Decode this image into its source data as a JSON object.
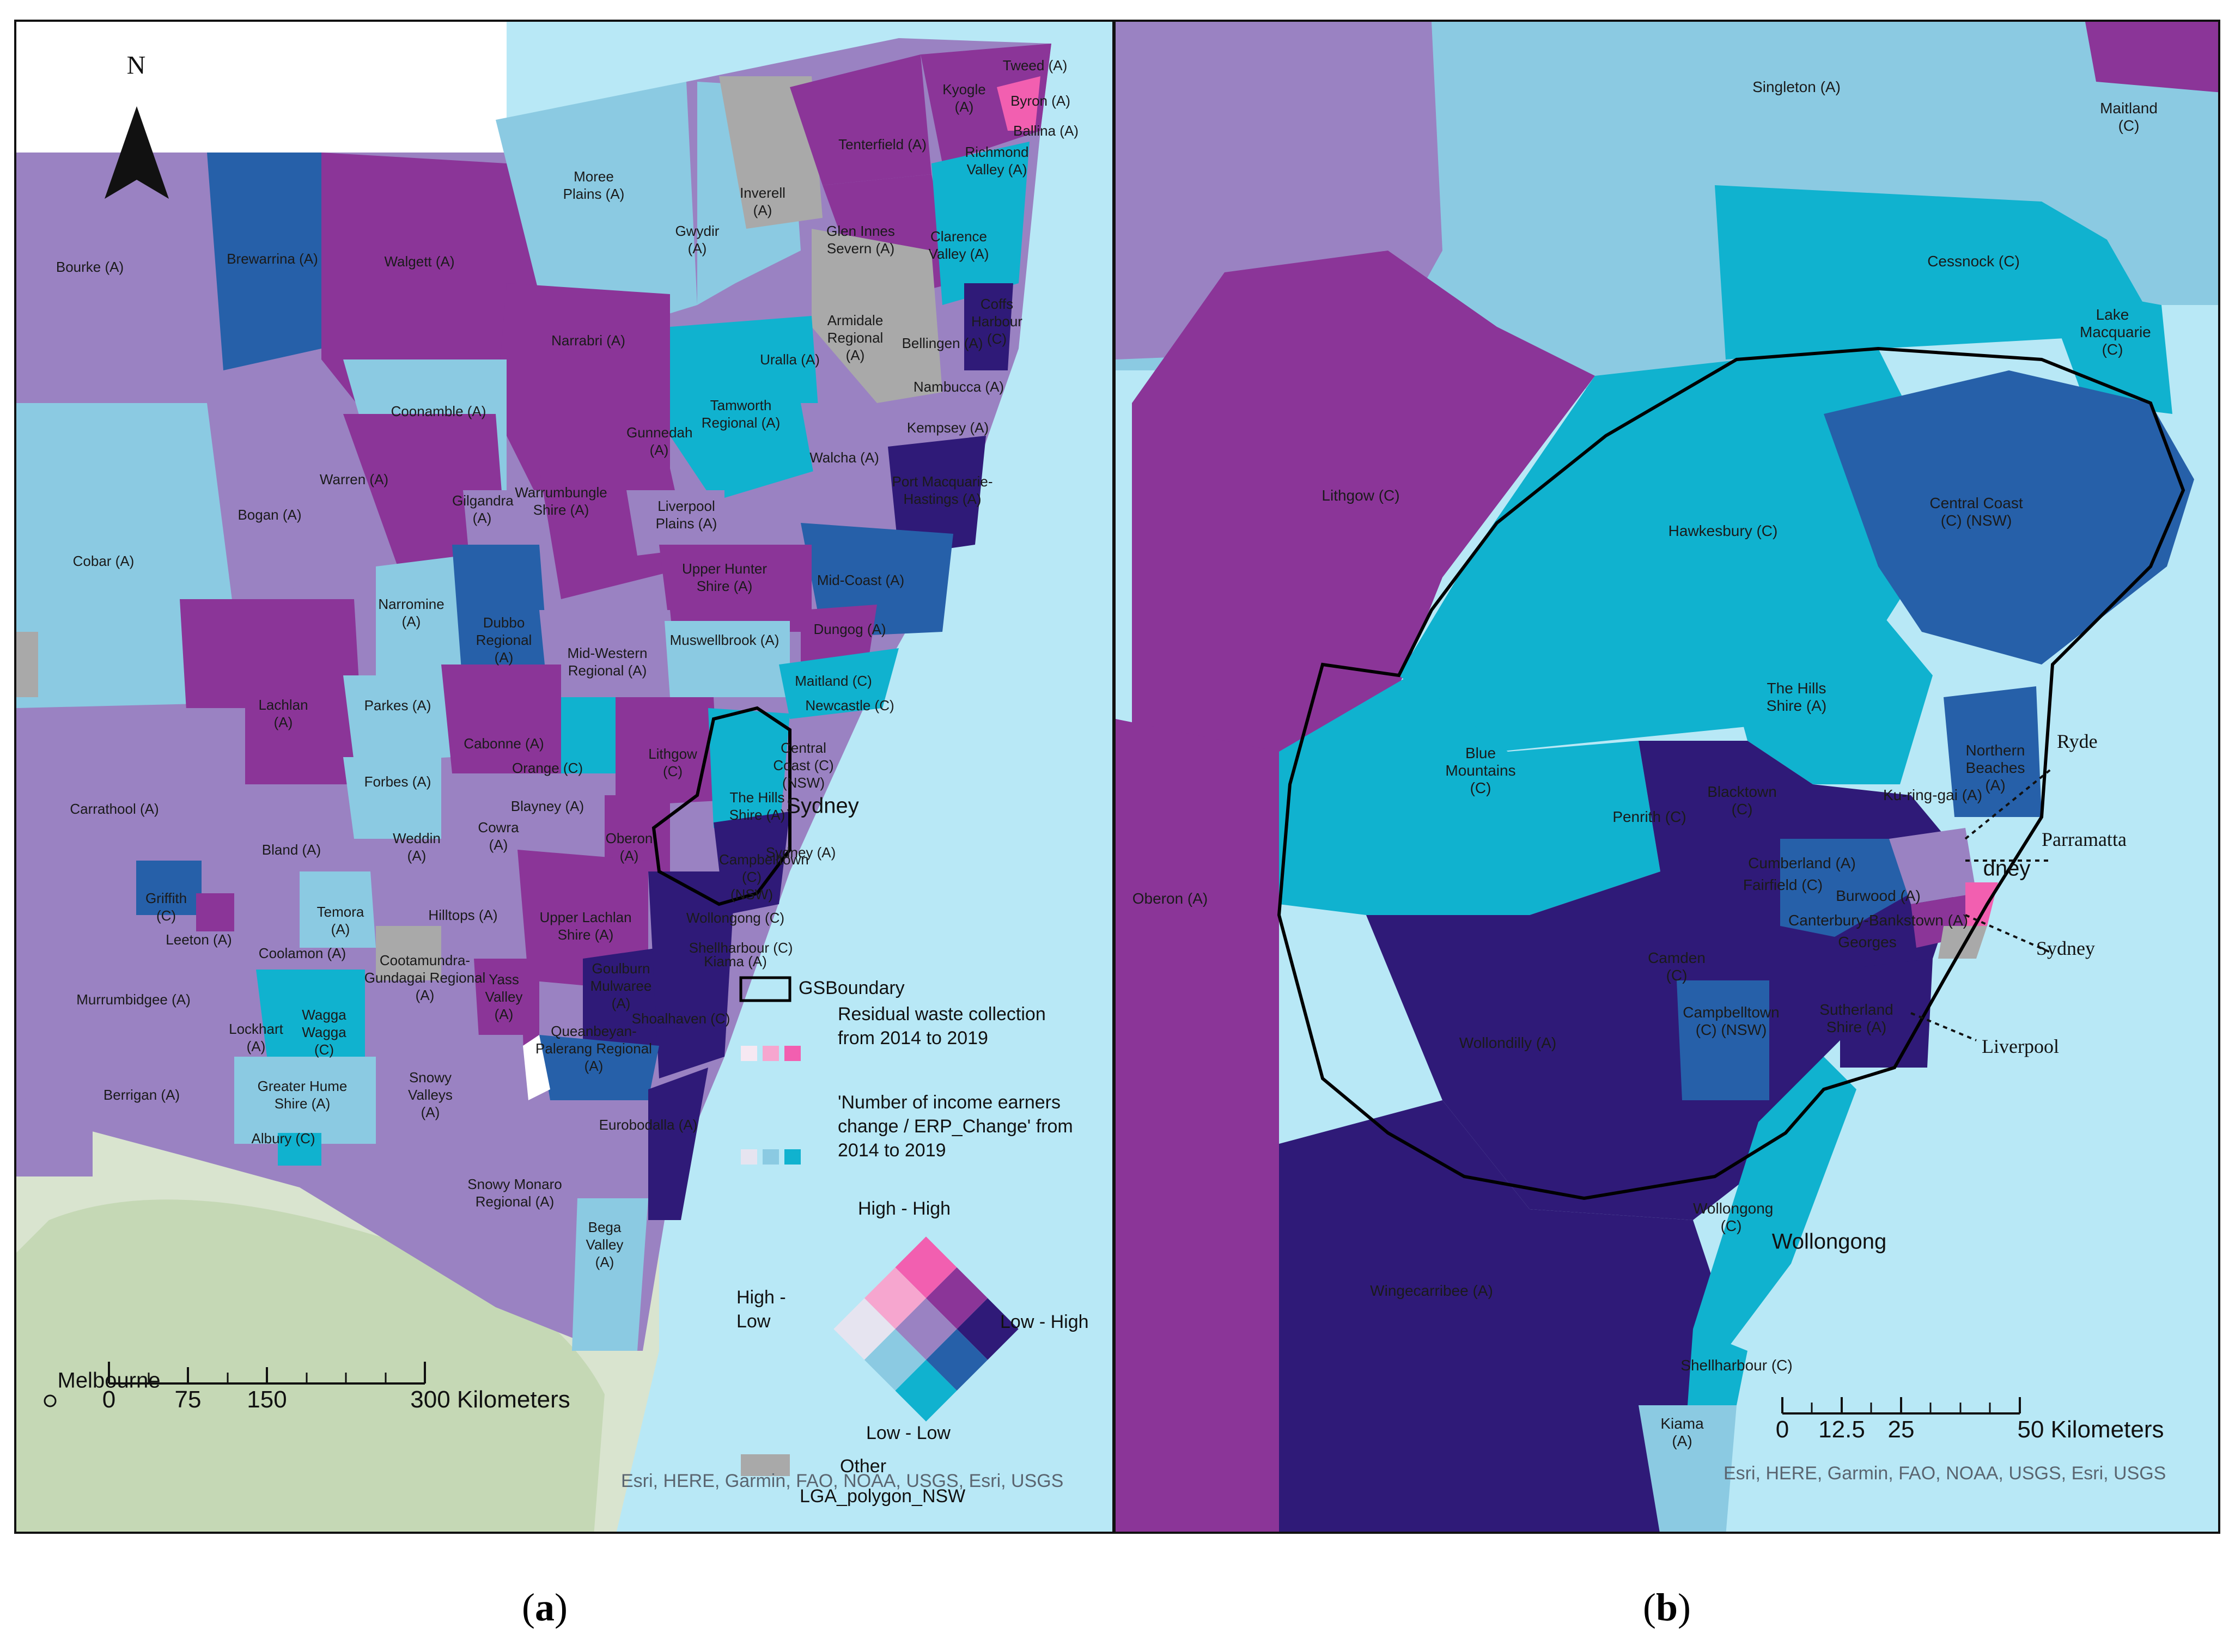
{
  "colors": {
    "dark_navy": "#2f1a78",
    "dark_blue": "#2660a9",
    "teal": "#10b2cf",
    "light_blue": "#8bcae2",
    "purple": "#8b3598",
    "lavender": "#9a82c2",
    "pink": "#f25fb0",
    "light_pink": "#f6a6cf",
    "pale": "#e6e4f0",
    "grey": "#a9a9a9",
    "sea": "#b8e8f6"
  },
  "panel_a": {
    "north_label": "N",
    "city_label": "Sydney",
    "melbourne_label": "Melbourne",
    "scale_ticks": [
      "0",
      "75",
      "150",
      "300 Kilometers"
    ],
    "attribution": "Esri, HERE, Garmin, FAO, NOAA, USGS, Esri, USGS",
    "lga_labels": [
      "Tweed (A)",
      "Byron (A)",
      "Ballina (A)",
      "Kyogle (A)",
      "Tenterfield (A)",
      "Richmond Valley (A)",
      "Moree Plains (A)",
      "Inverell (A)",
      "Gwydir (A)",
      "Glen Innes Severn (A)",
      "Clarence Valley (A)",
      "Bourke (A)",
      "Brewarrina (A)",
      "Walgett (A)",
      "Armidale Regional (A)",
      "Coffs Harbour (C)",
      "Bellingen (A)",
      "Narrabri (A)",
      "Uralla (A)",
      "Nambucca (A)",
      "Coonamble (A)",
      "Tamworth Regional (A)",
      "Gunnedah (A)",
      "Walcha (A)",
      "Kempsey (A)",
      "Warren (A)",
      "Port Macquarie-Hastings (A)",
      "Warrumbungle Shire (A)",
      "Gilgandra (A)",
      "Bogan (A)",
      "Liverpool Plains (A)",
      "Cobar (A)",
      "Upper Hunter Shire (A)",
      "Mid-Coast (A)",
      "Narromine (A)",
      "Dubbo Regional (A)",
      "Mid-Western Regional (A)",
      "Muswellbrook (A)",
      "Dungog (A)",
      "Lachlan (A)",
      "Maitland (C)",
      "Parkes (A)",
      "Newcastle (C)",
      "Cabonne (A)",
      "Lithgow (C)",
      "Central Coast (C) (NSW)",
      "Orange (C)",
      "Forbes (A)",
      "The Hills Shire (A)",
      "Carrathool (A)",
      "Blayney (A)",
      "Weddin (A)",
      "Cowra (A)",
      "Bland (A)",
      "Oberon (A)",
      "Sydney (A)",
      "Campbelltown (C) (NSW)",
      "Griffith (C)",
      "Hilltops (A)",
      "Temora (A)",
      "Upper Lachlan Shire (A)",
      "Wollongong (C)",
      "Leeton (A)",
      "Coolamon (A)",
      "Shellharbour (C)",
      "Kiama (A)",
      "Cootamundra-Gundagai Regional (A)",
      "Murrumbidgee (A)",
      "Yass Valley (A)",
      "Goulburn Mulwaree (A)",
      "Wagga Wagga (C)",
      "Shoalhaven (C)",
      "Lockhart (A)",
      "Queanbeyan-Palerang Regional (A)",
      "Greater Hume Shire (A)",
      "Snowy Valleys (A)",
      "Berrigan (A)",
      "Albury (C)",
      "Eurobodalla (A)",
      "Snowy Monaro Regional (A)",
      "Bega Valley (A)"
    ],
    "legend": {
      "gs_boundary": "GSBoundary",
      "residual": "Residual waste collection from 2014 to 2019",
      "income": "'Number of income earners change / ERP_Change' from 2014 to 2019",
      "high_high": "High - High",
      "high_low": "High - Low",
      "low_high": "Low - High",
      "low_low": "Low - Low",
      "other": "Other",
      "lga_polygon": "LGA_polygon_NSW"
    }
  },
  "panel_b": {
    "city_wollongong": "Wollongong",
    "city_sydney_fragment": "dney",
    "scale_ticks": [
      "0",
      "12.5",
      "25",
      "50 Kilometers"
    ],
    "attribution": "Esri, HERE, Garmin, FAO, NOAA, USGS, Esri, USGS",
    "callouts": [
      "Ryde",
      "Parramatta",
      "Sydney",
      "Liverpool"
    ],
    "lga_labels": [
      "Singleton (A)",
      "Maitland (C)",
      "Cessnock (C)",
      "Lake Macquarie (C)",
      "Lithgow (C)",
      "Hawkesbury (C)",
      "Central Coast (C) (NSW)",
      "The Hills Shire (A)",
      "Blue Mountains (C)",
      "Northern Beaches (A)",
      "Ku-ring-gai (A)",
      "Blacktown (C)",
      "Penrith (C)",
      "Oberon (A)",
      "Cumberland (A)",
      "Fairfield (C)",
      "Burwood (A)",
      "Canterbury-Bankstown (A)",
      "Georges",
      "Camden (C)",
      "Sutherland Shire (A)",
      "Wollondilly (A)",
      "Campbelltown (C) (NSW)",
      "Wollongong (C)",
      "Wingecarribee (A)",
      "Shellharbour (C)",
      "Kiama (A)"
    ]
  },
  "captions": {
    "a": "a",
    "b": "b"
  }
}
